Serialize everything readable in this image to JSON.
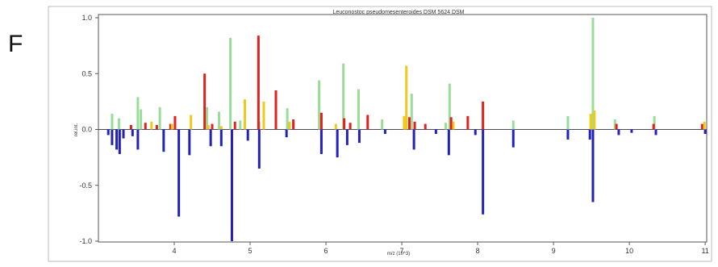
{
  "panel_label": "F",
  "chart_data": {
    "type": "bar",
    "title": "Leuconostoc pseudomesenteroides DSM 5624 DSM",
    "xlabel": "m/z (10^3)",
    "ylabel": "rel.int.",
    "xlim": [
      3.0,
      11.02
    ],
    "ylim": [
      -1.0,
      1.0
    ],
    "x_ticks": [
      4,
      5,
      6,
      7,
      8,
      9,
      10,
      11
    ],
    "y_ticks": [
      1.0,
      0.5,
      0.0,
      -0.5,
      -1.0
    ],
    "x_tick_labels": [
      "4",
      "5",
      "6",
      "7",
      "8",
      "9",
      "10",
      "11"
    ],
    "y_tick_labels": [
      "1.0",
      "0.5",
      "0.0",
      "-0.5",
      "-1.0"
    ],
    "grid": false,
    "colors": {
      "green": "#99dd99",
      "red": "#dd2222",
      "yellow": "#f2c81a",
      "blue": "#2222bb",
      "zero_line": "#4a4a5a",
      "axis": "#555555"
    },
    "series": [
      {
        "color_key": "green",
        "x": [
          3.18,
          3.27,
          3.52,
          3.56,
          3.81,
          4.43,
          4.59,
          4.74,
          4.87,
          5.12,
          5.49,
          5.91,
          6.23,
          6.43,
          6.74,
          7.13,
          7.58,
          7.63,
          8.47,
          9.19,
          9.52,
          9.81,
          10.33
        ],
        "values": [
          0.14,
          0.1,
          0.29,
          0.18,
          0.2,
          0.2,
          0.16,
          0.82,
          0.08,
          0.07,
          0.19,
          0.44,
          0.59,
          0.36,
          0.09,
          0.32,
          0.06,
          0.41,
          0.08,
          0.12,
          1.0,
          0.09,
          0.12
        ]
      },
      {
        "color_key": "red",
        "x": [
          3.43,
          3.62,
          3.77,
          3.95,
          4.01,
          4.4,
          4.5,
          4.8,
          5.11,
          5.34,
          5.57,
          5.94,
          6.24,
          6.32,
          6.55,
          7.1,
          7.17,
          7.31,
          7.65,
          7.87,
          8.07,
          9.83,
          10.32,
          10.96
        ],
        "values": [
          0.04,
          0.06,
          0.04,
          0.05,
          0.12,
          0.5,
          0.05,
          0.07,
          0.84,
          0.35,
          0.09,
          0.15,
          0.1,
          0.06,
          0.13,
          0.11,
          0.07,
          0.05,
          0.11,
          0.12,
          0.25,
          0.05,
          0.05,
          0.05
        ]
      },
      {
        "color_key": "yellow",
        "x": [
          3.7,
          3.97,
          4.22,
          4.45,
          4.62,
          4.93,
          5.18,
          5.52,
          6.13,
          7.03,
          7.06,
          7.68,
          9.49,
          9.54,
          10.99
        ],
        "values": [
          0.07,
          0.05,
          0.13,
          0.04,
          0.03,
          0.27,
          0.25,
          0.07,
          0.05,
          0.12,
          0.57,
          0.07,
          0.14,
          0.17,
          0.07
        ]
      },
      {
        "color_key": "blue",
        "x": [
          3.13,
          3.18,
          3.24,
          3.28,
          3.33,
          3.45,
          3.52,
          3.86,
          4.06,
          4.2,
          4.48,
          4.62,
          4.76,
          4.97,
          5.12,
          5.48,
          5.94,
          6.15,
          6.28,
          6.44,
          6.78,
          7.16,
          7.45,
          7.62,
          7.97,
          8.07,
          8.47,
          9.19,
          9.48,
          9.52,
          9.86,
          10.03,
          10.35,
          11.0
        ],
        "values": [
          -0.05,
          -0.14,
          -0.18,
          -0.22,
          -0.08,
          -0.06,
          -0.18,
          -0.2,
          -0.78,
          -0.23,
          -0.15,
          -0.15,
          -1.0,
          -0.1,
          -0.35,
          -0.07,
          -0.22,
          -0.25,
          -0.14,
          -0.12,
          -0.04,
          -0.18,
          -0.04,
          -0.23,
          -0.05,
          -0.76,
          -0.16,
          -0.09,
          -0.09,
          -0.65,
          -0.05,
          -0.03,
          -0.05,
          -0.04
        ]
      }
    ]
  }
}
